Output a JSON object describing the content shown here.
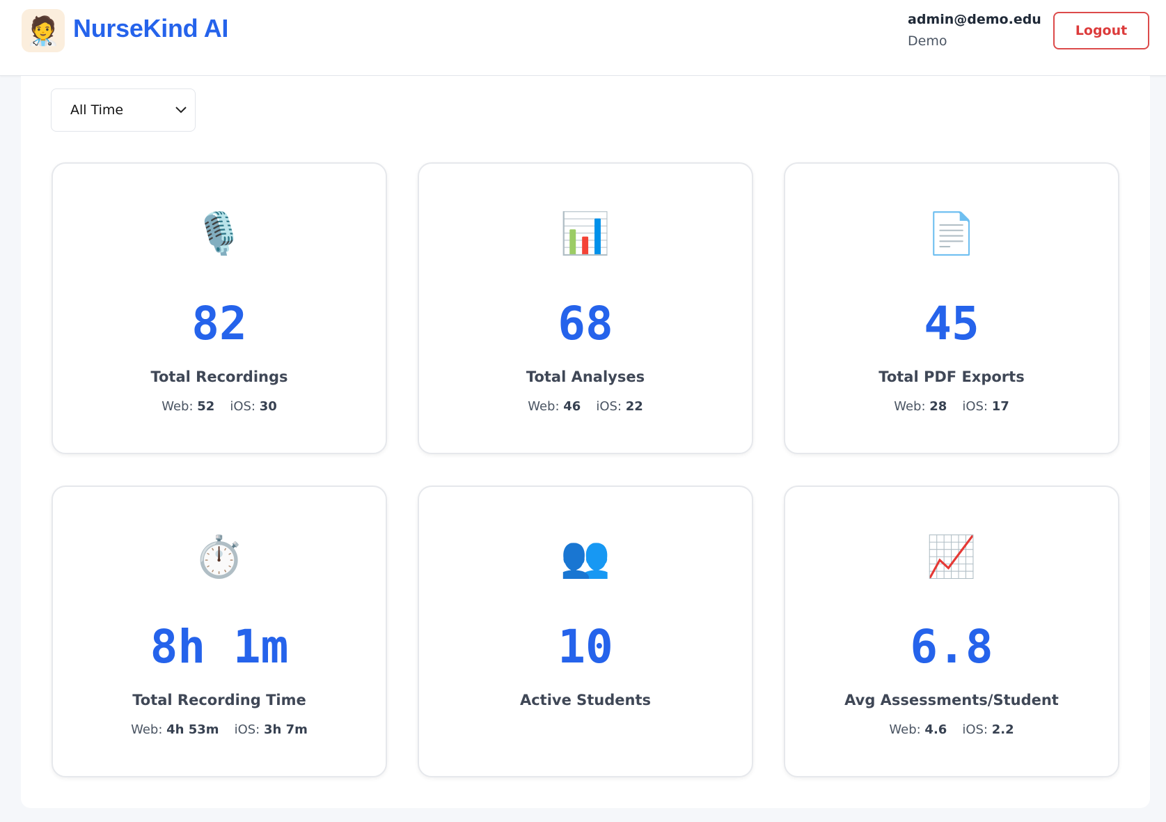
{
  "header": {
    "app_name": "NurseKind AI",
    "logo_icon": "nurse-avatar",
    "user_email": "admin@demo.edu",
    "user_role": "Demo",
    "logout_label": "Logout"
  },
  "filter": {
    "selected": "All Time"
  },
  "accent_color": "#2563eb",
  "stats": [
    {
      "icon": "🎙️",
      "icon_name": "microphone-icon",
      "value": "82",
      "label": "Total Recordings",
      "web_label": "Web:",
      "web": "52",
      "ios_label": "iOS:",
      "ios": "30"
    },
    {
      "icon": "📊",
      "icon_name": "bar-chart-icon",
      "value": "68",
      "label": "Total Analyses",
      "web_label": "Web:",
      "web": "46",
      "ios_label": "iOS:",
      "ios": "22"
    },
    {
      "icon": "📄",
      "icon_name": "document-icon",
      "value": "45",
      "label": "Total PDF Exports",
      "web_label": "Web:",
      "web": "28",
      "ios_label": "iOS:",
      "ios": "17"
    },
    {
      "icon": "⏱️",
      "icon_name": "stopwatch-icon",
      "value": "8h 1m",
      "label": "Total Recording Time",
      "web_label": "Web:",
      "web": "4h 53m",
      "ios_label": "iOS:",
      "ios": "3h 7m"
    },
    {
      "icon": "👥",
      "icon_name": "users-icon",
      "value": "10",
      "label": "Active Students"
    },
    {
      "icon": "📈",
      "icon_name": "trend-chart-icon",
      "value": "6.8",
      "label": "Avg Assessments/Student",
      "web_label": "Web:",
      "web": "4.6",
      "ios_label": "iOS:",
      "ios": "2.2"
    }
  ]
}
